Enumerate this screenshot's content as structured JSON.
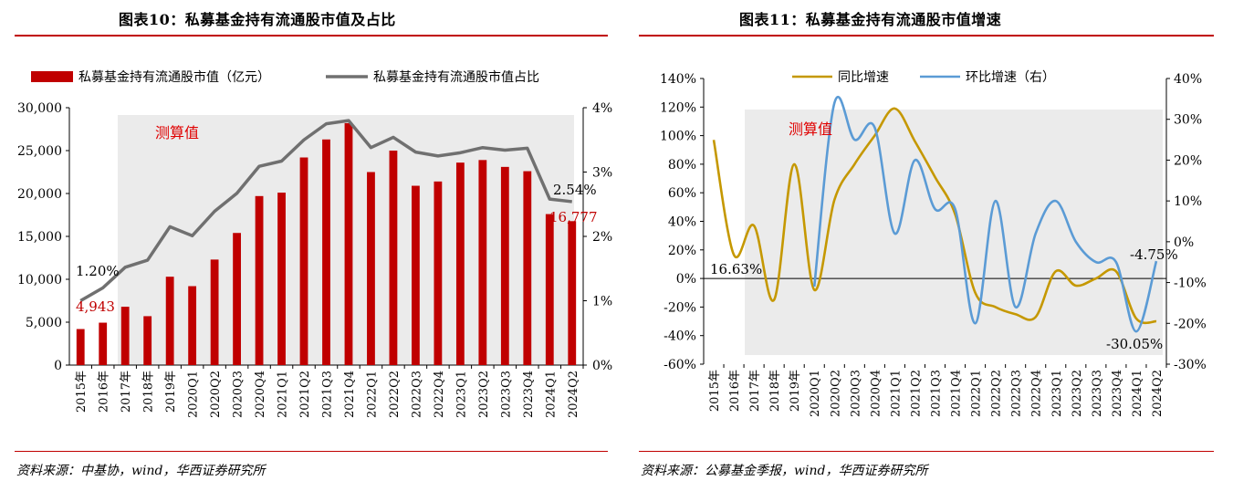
{
  "panels": {
    "left": {
      "title": "图表10：私募基金持有流通股市值及占比",
      "source": "资料来源：中基协，wind，华西证券研究所"
    },
    "right": {
      "title": "图表11：私募基金持有流通股市值增速",
      "source": "资料来源：公募基金季报，wind，华西证券研究所"
    }
  },
  "colors": {
    "red": "#c00000",
    "gray": "#707070",
    "gold": "#c59800",
    "blue": "#5b9bd5",
    "shade": "#ebebeb"
  },
  "chart_data": [
    {
      "type": "bar",
      "categories": [
        "2015年",
        "2016年",
        "2017年",
        "2018年",
        "2019年",
        "2020Q1",
        "2020Q2",
        "2020Q3",
        "2020Q4",
        "2021Q1",
        "2021Q2",
        "2021Q3",
        "2021Q4",
        "2022Q1",
        "2022Q2",
        "2022Q3",
        "2022Q4",
        "2023Q1",
        "2023Q2",
        "2023Q3",
        "2023Q4",
        "2024Q1",
        "2024Q2"
      ],
      "series": [
        {
          "name": "私募基金持有流通股市值（亿元）",
          "type": "bar",
          "axis": "left",
          "values": [
            4200,
            4943,
            6800,
            5700,
            10300,
            9200,
            12300,
            15400,
            19700,
            20100,
            24200,
            26300,
            28200,
            22500,
            25000,
            20900,
            21400,
            23600,
            23900,
            23100,
            22600,
            17600,
            16777
          ]
        },
        {
          "name": "私募基金持有流通股市值占比",
          "type": "line",
          "axis": "right",
          "values": [
            1.0,
            1.2,
            1.52,
            1.63,
            2.15,
            2.01,
            2.39,
            2.67,
            3.09,
            3.17,
            3.5,
            3.75,
            3.8,
            3.38,
            3.54,
            3.31,
            3.25,
            3.3,
            3.38,
            3.34,
            3.37,
            2.58,
            2.54
          ]
        }
      ],
      "ylim": [
        0,
        30000
      ],
      "y_ticks": [
        "0",
        "5,000",
        "10,000",
        "15,000",
        "20,000",
        "25,000",
        "30,000"
      ],
      "y2lim": [
        0,
        4
      ],
      "y2_ticks": [
        "0%",
        "1%",
        "2%",
        "3%",
        "4%"
      ],
      "annotations": [
        "1.20%",
        "4,943",
        "2.54%",
        "16,777",
        "测算值"
      ],
      "shaded_category_range": [
        "2017年",
        "2024Q2"
      ],
      "grid": false,
      "legend": "top"
    },
    {
      "type": "line",
      "categories": [
        "2015年",
        "2016年",
        "2017年",
        "2018年",
        "2019年",
        "2020Q1",
        "2020Q2",
        "2020Q3",
        "2020Q4",
        "2021Q1",
        "2021Q2",
        "2021Q3",
        "2021Q4",
        "2022Q1",
        "2022Q2",
        "2022Q3",
        "2022Q4",
        "2023Q1",
        "2023Q2",
        "2023Q3",
        "2023Q4",
        "2024Q1",
        "2024Q2"
      ],
      "series": [
        {
          "name": "同比增速",
          "axis": "left",
          "values": [
            97,
            16.63,
            37,
            -15,
            80,
            -8,
            55,
            80,
            100,
            119,
            96,
            71,
            45,
            -10,
            -20,
            -25,
            -27,
            5,
            -5,
            0,
            5,
            -28,
            -30.05
          ]
        },
        {
          "name": "环比增速（右）",
          "axis": "right",
          "values": [
            null,
            null,
            null,
            null,
            null,
            -11,
            34,
            25,
            28,
            2,
            20,
            8,
            8,
            -20,
            10,
            -16,
            2,
            10,
            0,
            -5,
            -5,
            -22,
            -4.75
          ]
        }
      ],
      "ylim": [
        -60,
        140
      ],
      "y_ticks": [
        "-60%",
        "-40%",
        "-20%",
        "0%",
        "20%",
        "40%",
        "60%",
        "80%",
        "100%",
        "120%",
        "140%"
      ],
      "y2lim": [
        -30,
        40
      ],
      "y2_ticks": [
        "-30%",
        "-20%",
        "-10%",
        "0%",
        "10%",
        "20%",
        "30%",
        "40%"
      ],
      "annotations": [
        "16.63%",
        "-4.75%",
        "-30.05%",
        "测算值"
      ],
      "shaded_category_range": [
        "2017年",
        "2024Q2"
      ],
      "grid": false,
      "legend": "top"
    }
  ]
}
